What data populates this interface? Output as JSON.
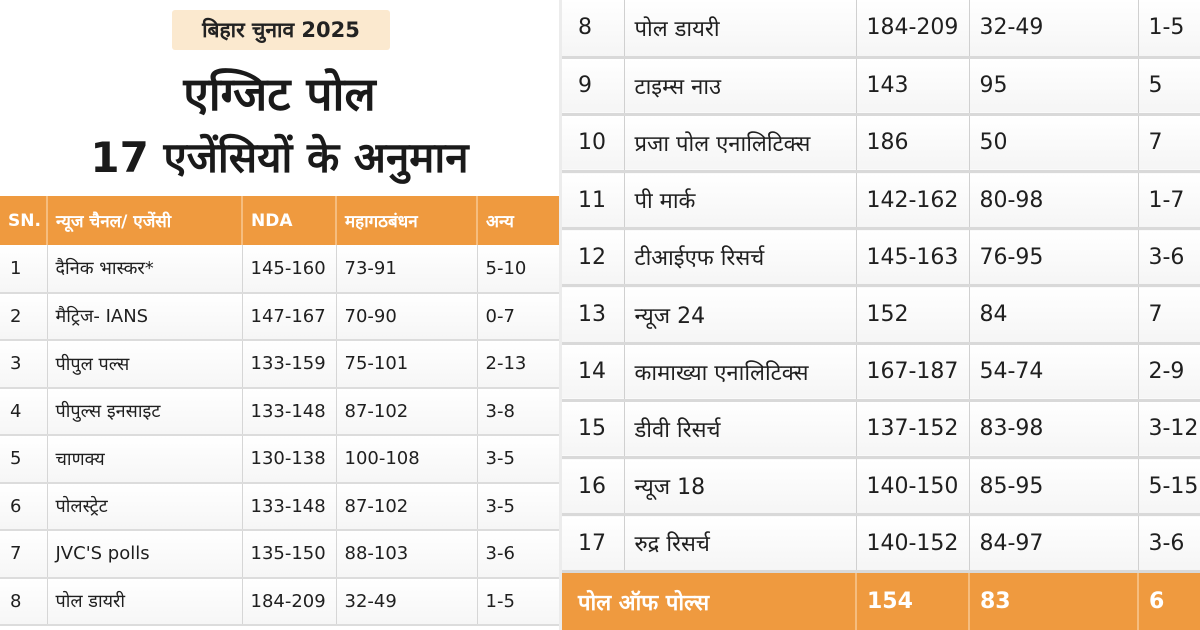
{
  "header": {
    "badge": "बिहार चुनाव 2025",
    "title_line1": "एग्जिट पोल",
    "title_line2": "17 एजेंसियों के अनुमान"
  },
  "table": {
    "columns": [
      "SN.",
      "न्यूज चैनल/ एजेंसी",
      "NDA",
      "महागठबंधन",
      "अन्य"
    ],
    "left_rows": [
      [
        "1",
        "दैनिक भास्कर*",
        "145-160",
        "73-91",
        "5-10"
      ],
      [
        "2",
        "मैट्रिज- IANS",
        "147-167",
        "70-90",
        "0-7"
      ],
      [
        "3",
        "पीपुल पल्स",
        "133-159",
        "75-101",
        "2-13"
      ],
      [
        "4",
        "पीपुल्स इनसाइट",
        "133-148",
        "87-102",
        "3-8"
      ],
      [
        "5",
        "चाणक्य",
        "130-138",
        "100-108",
        "3-5"
      ],
      [
        "6",
        "पोलस्ट्रेट",
        "133-148",
        "87-102",
        "3-5"
      ],
      [
        "7",
        "JVC'S polls",
        "135-150",
        "88-103",
        "3-6"
      ],
      [
        "8",
        "पोल डायरी",
        "184-209",
        "32-49",
        "1-5"
      ]
    ],
    "right_rows": [
      [
        "8",
        "पोल डायरी",
        "184-209",
        "32-49",
        "1-5"
      ],
      [
        "9",
        "टाइम्स नाउ",
        "143",
        "95",
        "5"
      ],
      [
        "10",
        "प्रजा पोल एनालिटिक्स",
        "186",
        "50",
        "7"
      ],
      [
        "11",
        "पी मार्क",
        "142-162",
        "80-98",
        "1-7"
      ],
      [
        "12",
        "टीआईएफ रिसर्च",
        "145-163",
        "76-95",
        "3-6"
      ],
      [
        "13",
        "न्यूज 24",
        "152",
        "84",
        "7"
      ],
      [
        "14",
        "कामाख्या एनालिटिक्स",
        "167-187",
        "54-74",
        "2-9"
      ],
      [
        "15",
        "डीवी रिसर्च",
        "137-152",
        "83-98",
        "3-12"
      ],
      [
        "16",
        "न्यूज 18",
        "140-150",
        "85-95",
        "5-15"
      ],
      [
        "17",
        "रुद्र रिसर्च",
        "140-152",
        "84-97",
        "3-6"
      ]
    ],
    "total_row": [
      "पोल ऑफ पोल्स",
      "154",
      "83",
      "6"
    ]
  },
  "colors": {
    "accent": "#ef9a3f",
    "badge_bg": "#fbe9cf"
  }
}
